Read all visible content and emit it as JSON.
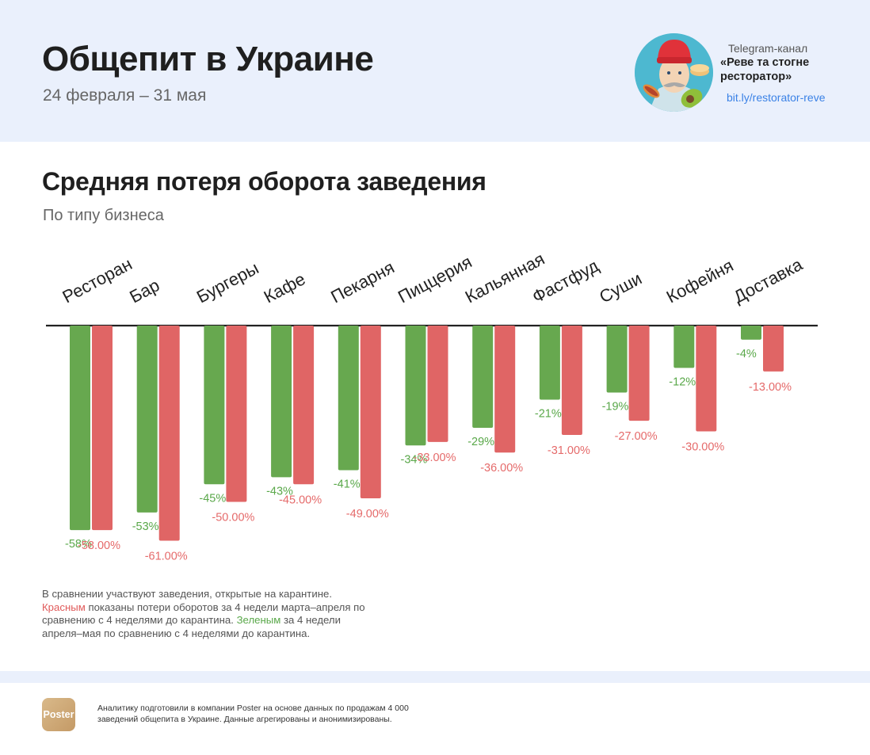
{
  "header": {
    "title": "Общепит в Украине",
    "subtitle": "24 февраля – 31 мая",
    "telegram": {
      "label": "Telegram-канал",
      "name": "«Реве та стогне ресторатор»",
      "link": "bit.ly/restorator-reve",
      "avatar_icon": "chef-avatar-icon"
    }
  },
  "chart_section": {
    "title": "Средняя потеря оборота заведения",
    "subtitle": "По типу бизнеса"
  },
  "chart_data": {
    "type": "bar",
    "title": "Средняя потеря оборота заведения",
    "subtitle": "По типу бизнеса",
    "xlabel": "",
    "ylabel": "",
    "ylim": [
      -62,
      0
    ],
    "grid": false,
    "legend": "none (explained in note below chart)",
    "categories": [
      "Ресторан",
      "Бар",
      "Бургеры",
      "Кафе",
      "Пекарня",
      "Пиццерия",
      "Кальянная",
      "Фастфуд",
      "Суши",
      "Кофейня",
      "Доставка"
    ],
    "series": [
      {
        "name": "Апрель–май vs до карантина",
        "color": "#67a84f",
        "label_color": "#5aa84a",
        "values": [
          -58,
          -53,
          -45,
          -43,
          -41,
          -34,
          -29,
          -21,
          -19,
          -12,
          -4
        ],
        "labels": [
          "-58%",
          "-53%",
          "-45%",
          "-43%",
          "-41%",
          "-34%",
          "-29%",
          "-21%",
          "-19%",
          "-12%",
          "-4%"
        ]
      },
      {
        "name": "Март–апрель vs до карантина",
        "color": "#e06565",
        "label_color": "#e56a6a",
        "values": [
          -58,
          -61,
          -50,
          -45,
          -49,
          -33,
          -36,
          -31,
          -27,
          -30,
          -13
        ],
        "labels": [
          "-58.00%",
          "-61.00%",
          "-50.00%",
          "-45.00%",
          "-49.00%",
          "-33.00%",
          "-36.00%",
          "-31.00%",
          "-27.00%",
          "-30.00%",
          "-13.00%"
        ]
      }
    ]
  },
  "note": {
    "line1": "В сравнении участвуют заведения, открытые на карантине.",
    "red_word": "Красным",
    "line2": " показаны потери оборотов за 4 недели марта–апреля по сравнению с 4 неделями до карантина. ",
    "green_word": "Зеленым",
    "line3": " за 4 недели апреля–мая по сравнению с 4 неделями до карантина."
  },
  "footer": {
    "logo_text": "Poster",
    "text": "Аналитику подготовили в компании Poster на основе данных по продажам 4 000 заведений общепита в Украине. Данные агрегированы и анонимизированы."
  }
}
